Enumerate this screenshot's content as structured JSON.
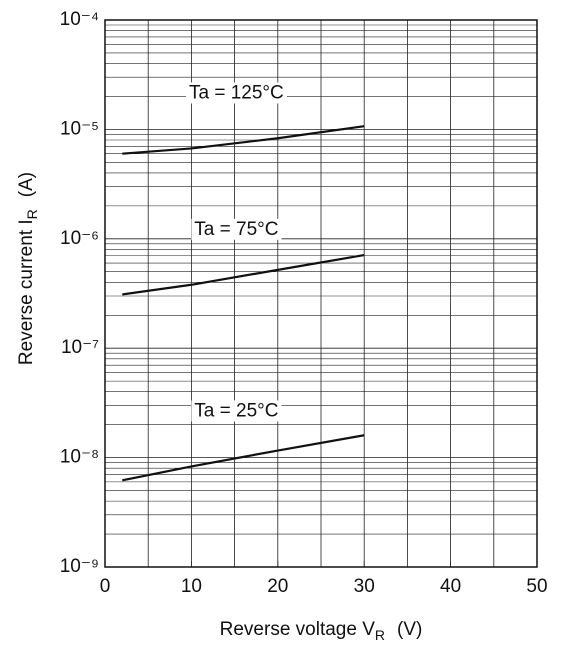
{
  "chart_data": {
    "type": "line",
    "log_y": true,
    "grid": true,
    "xlabel": {
      "text": "Reverse voltage  V",
      "sub": "R",
      "unit": "(V)"
    },
    "ylabel": {
      "text": "Reverse current  I",
      "sub": "R",
      "unit": "(A)"
    },
    "xlim": [
      0,
      50
    ],
    "xticks": [
      0,
      10,
      20,
      30,
      40,
      50
    ],
    "xgrid": [
      5,
      10,
      15,
      20,
      25,
      30,
      35,
      40,
      45
    ],
    "ylim": [
      1e-09,
      0.0001
    ],
    "yticks": [
      {
        "value": 1e-09,
        "label": "10⁻⁹"
      },
      {
        "value": 1e-08,
        "label": "10⁻⁸"
      },
      {
        "value": 1e-07,
        "label": "10⁻⁷"
      },
      {
        "value": 1e-06,
        "label": "10⁻⁶"
      },
      {
        "value": 1e-05,
        "label": "10⁻⁵"
      },
      {
        "value": 0.0001,
        "label": "10⁻⁴"
      }
    ],
    "x": [
      2,
      10,
      20,
      30
    ],
    "series": [
      {
        "name": "Ta = 125°C",
        "color": "#111111",
        "values": [
          6e-06,
          6.7e-06,
          8.3e-06,
          1.07e-05
        ]
      },
      {
        "name": "Ta = 75°C",
        "color": "#111111",
        "values": [
          3.1e-07,
          3.8e-07,
          5.2e-07,
          7.1e-07
        ]
      },
      {
        "name": "Ta = 25°C",
        "color": "#111111",
        "values": [
          6.2e-09,
          8.3e-09,
          1.16e-08,
          1.6e-08
        ]
      }
    ]
  }
}
